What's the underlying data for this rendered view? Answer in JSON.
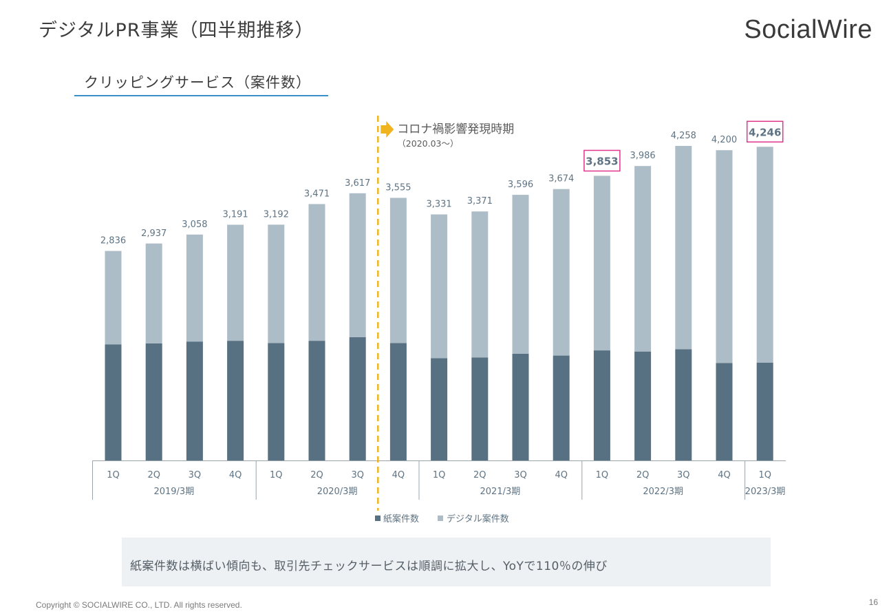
{
  "header": {
    "title": "デジタルPR事業（四半期推移）",
    "logo_text": "SocialWire"
  },
  "section": {
    "title": "クリッピングサービス（案件数）"
  },
  "chart_data": {
    "type": "bar",
    "stacked": true,
    "categories": [
      "1Q",
      "2Q",
      "3Q",
      "4Q",
      "1Q",
      "2Q",
      "3Q",
      "4Q",
      "1Q",
      "2Q",
      "3Q",
      "4Q",
      "1Q",
      "2Q",
      "3Q",
      "4Q",
      "1Q"
    ],
    "groups": [
      {
        "label": "2019/3期",
        "count": 4
      },
      {
        "label": "2020/3期",
        "count": 4
      },
      {
        "label": "2021/3期",
        "count": 4
      },
      {
        "label": "2022/3期",
        "count": 4
      },
      {
        "label": "2023/3期",
        "count": 1
      }
    ],
    "series": [
      {
        "name": "紙案件数",
        "color": "#577182",
        "values": [
          1570,
          1585,
          1610,
          1620,
          1590,
          1620,
          1670,
          1590,
          1385,
          1395,
          1445,
          1420,
          1490,
          1475,
          1505,
          1320,
          1325
        ]
      },
      {
        "name": "デジタル案件数",
        "color": "#adbdc8",
        "values": [
          1266,
          1352,
          1448,
          1571,
          1602,
          1851,
          1947,
          1965,
          1946,
          1976,
          2151,
          2254,
          2363,
          2511,
          2753,
          2880,
          2921
        ]
      }
    ],
    "totals": [
      "2,836",
      "2,937",
      "3,058",
      "3,191",
      "3,192",
      "3,471",
      "3,617",
      "3,555",
      "3,331",
      "3,371",
      "3,596",
      "3,674",
      "3,853",
      "3,986",
      "4,258",
      "4,200",
      "4,246"
    ],
    "highlighted_totals": [
      12,
      16
    ],
    "ylim": [
      0,
      4300
    ],
    "annotation": {
      "text": "コロナ禍影響発現時期",
      "subtext": "（2020.03～）"
    },
    "colors": {
      "marker_line": "#f0b51e",
      "highlight_border": "#e0338a",
      "label_text": "#5e7383"
    }
  },
  "summary": {
    "text": "紙案件数は横ばい傾向も、取引先チェックサービスは順調に拡大し、YoYで110％の伸び"
  },
  "footer": {
    "copyright": "Copyright © SOCIALWIRE CO., LTD. All rights reserved.",
    "page_number": "16"
  }
}
